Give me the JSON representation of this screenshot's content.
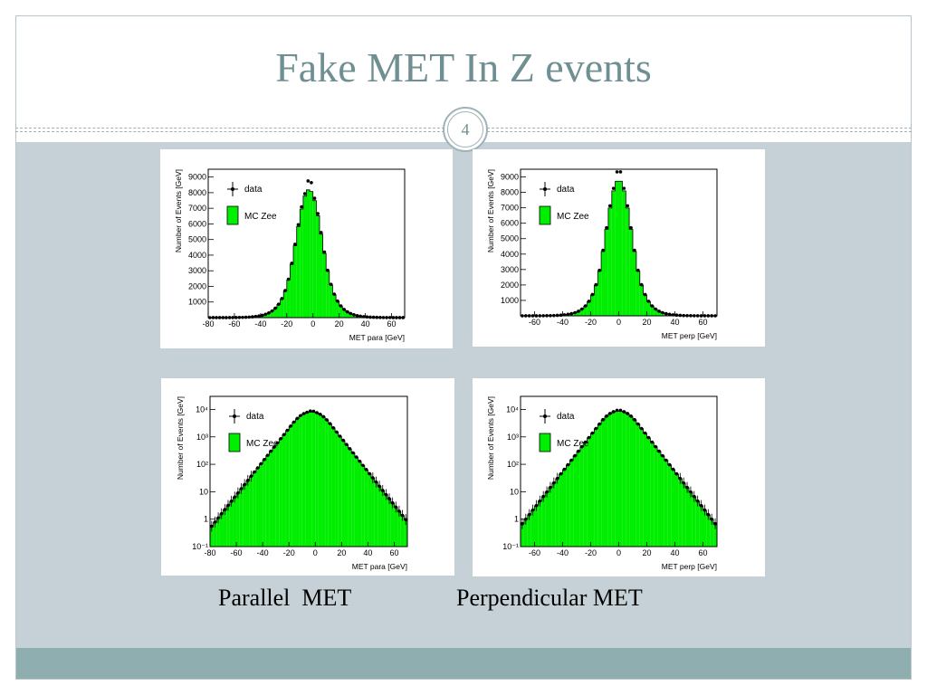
{
  "slide": {
    "title": "Fake MET In Z events",
    "number": "4",
    "captions": [
      "Parallel  MET",
      "Perpendicular MET"
    ]
  },
  "colors": {
    "mc_fill": "#00ee00",
    "data_marker": "#000000",
    "title": "#6f8f92",
    "background": "#c5d1d6"
  },
  "chart_data": [
    {
      "type": "bar",
      "id": "para-linear",
      "xlabel": "MET para [GeV]",
      "ylabel": "Number of Events [GeV]",
      "xlim": [
        -80,
        70
      ],
      "ylim": [
        0,
        9500
      ],
      "log_y": false,
      "x_ticks": [
        -80,
        -60,
        -40,
        -20,
        0,
        20,
        40,
        60
      ],
      "y_ticks": [
        1000,
        2000,
        3000,
        4000,
        5000,
        6000,
        7000,
        8000,
        9000
      ],
      "legend": [
        "data",
        "MC Zee"
      ],
      "legend_position": "top-left",
      "peak": 8200,
      "mean": -3,
      "sigma": 10
    },
    {
      "type": "bar",
      "id": "perp-linear",
      "xlabel": "MET perp [GeV]",
      "ylabel": "Number of Events [GeV]",
      "xlim": [
        -70,
        70
      ],
      "ylim": [
        0,
        9500
      ],
      "log_y": false,
      "x_ticks": [
        -60,
        -40,
        -20,
        0,
        20,
        40,
        60
      ],
      "y_ticks": [
        1000,
        2000,
        3000,
        4000,
        5000,
        6000,
        7000,
        8000,
        9000
      ],
      "legend": [
        "data",
        "MC Zee"
      ],
      "legend_position": "top-left",
      "peak": 8800,
      "mean": 0,
      "sigma": 9.2
    },
    {
      "type": "bar",
      "id": "para-log",
      "xlabel": "MET para [GeV]",
      "ylabel": "Number of Events [GeV]",
      "xlim": [
        -80,
        70
      ],
      "ylim": [
        0.1,
        30000
      ],
      "log_y": true,
      "x_ticks": [
        -80,
        -60,
        -40,
        -20,
        0,
        20,
        40,
        60
      ],
      "y_ticks": [
        0.1,
        1,
        10,
        100,
        1000,
        10000
      ],
      "y_tick_labels": [
        "10⁻¹",
        "1",
        "10",
        "10²",
        "10³",
        "10⁴"
      ],
      "legend": [
        "data",
        "MC Zee"
      ],
      "legend_position": "top-left",
      "peak": 8200,
      "mean": -3,
      "sigma": 10
    },
    {
      "type": "bar",
      "id": "perp-log",
      "xlabel": "MET perp [GeV]",
      "ylabel": "Number of Events [GeV]",
      "xlim": [
        -70,
        70
      ],
      "ylim": [
        0.1,
        30000
      ],
      "log_y": true,
      "x_ticks": [
        -60,
        -40,
        -20,
        0,
        20,
        40,
        60
      ],
      "y_ticks": [
        0.1,
        1,
        10,
        100,
        1000,
        10000
      ],
      "y_tick_labels": [
        "10⁻¹",
        "1",
        "10",
        "10²",
        "10³",
        "10⁴"
      ],
      "legend": [
        "data",
        "MC Zee"
      ],
      "legend_position": "top-left",
      "peak": 8800,
      "mean": 0,
      "sigma": 9.2
    }
  ]
}
